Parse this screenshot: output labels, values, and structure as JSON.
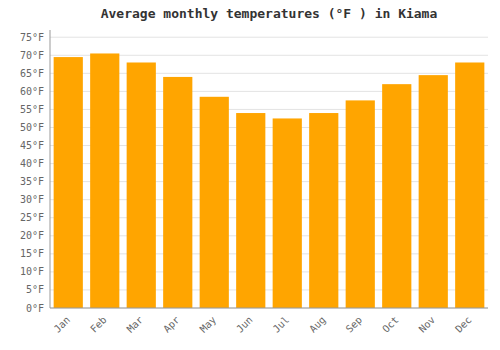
{
  "chart_data": {
    "type": "bar",
    "title": "Average monthly temperatures (°F ) in Kiama",
    "categories": [
      "Jan",
      "Feb",
      "Mar",
      "Apr",
      "May",
      "Jun",
      "Jul",
      "Aug",
      "Sep",
      "Oct",
      "Nov",
      "Dec"
    ],
    "values": [
      69.5,
      70.5,
      68,
      64,
      58.5,
      54,
      52.5,
      54,
      57.5,
      62,
      64.5,
      68
    ],
    "color": "#FFA500",
    "ylim": [
      0,
      77
    ],
    "yticks": [
      {
        "value": 0,
        "label": "0°F"
      },
      {
        "value": 5,
        "label": "5°F"
      },
      {
        "value": 10,
        "label": "10°F"
      },
      {
        "value": 15,
        "label": "15°F"
      },
      {
        "value": 20,
        "label": "20°F"
      },
      {
        "value": 25,
        "label": "25°F"
      },
      {
        "value": 30,
        "label": "30°F"
      },
      {
        "value": 35,
        "label": "35°F"
      },
      {
        "value": 40,
        "label": "40°F"
      },
      {
        "value": 45,
        "label": "45°F"
      },
      {
        "value": 50,
        "label": "50°F"
      },
      {
        "value": 55,
        "label": "55°F"
      },
      {
        "value": 60,
        "label": "60°F"
      },
      {
        "value": 65,
        "label": "65°F"
      },
      {
        "value": 70,
        "label": "70°F"
      },
      {
        "value": 75,
        "label": "75°F"
      }
    ],
    "grid": true
  }
}
